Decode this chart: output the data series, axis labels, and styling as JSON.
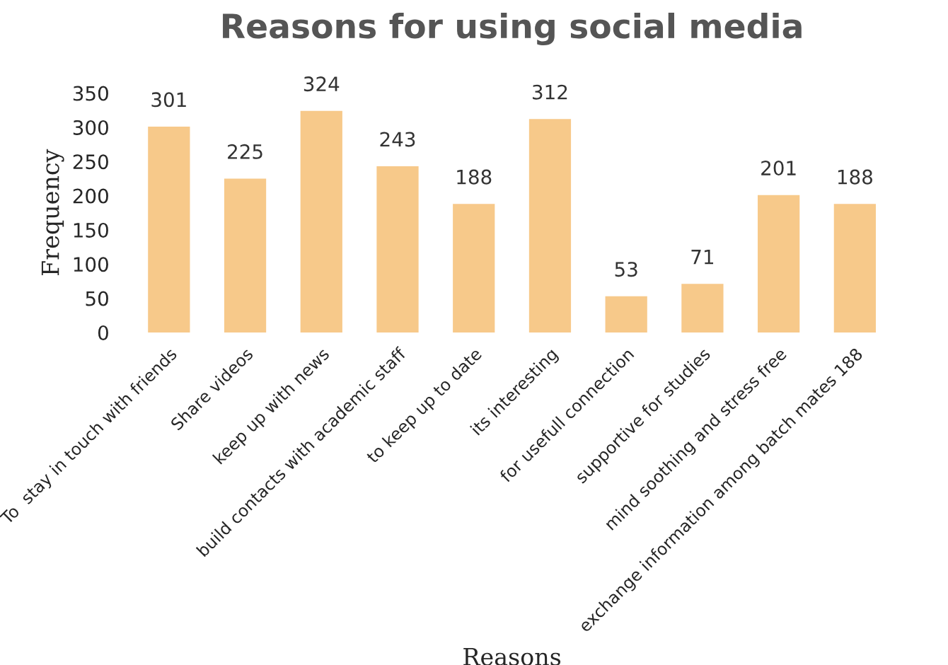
{
  "chart_data": {
    "type": "bar",
    "title": "Reasons for using social media",
    "xlabel": "Reasons",
    "ylabel": "Frequency",
    "categories": [
      "To  stay in touch with friends",
      "Share videos",
      "keep up with news",
      "build contacts with academic staff",
      "to keep up to date",
      "its interesting",
      "for usefull connection",
      "supportive for studies",
      "mind soothing and stress free",
      "exchange information among batch mates 188"
    ],
    "values": [
      301,
      225,
      324,
      243,
      188,
      312,
      53,
      71,
      201,
      188
    ],
    "color": "#f7c98a",
    "ylim": [
      0,
      350
    ],
    "yticks": [
      0,
      50,
      100,
      150,
      200,
      250,
      300,
      350
    ],
    "data_labels": true,
    "grid": false
  }
}
